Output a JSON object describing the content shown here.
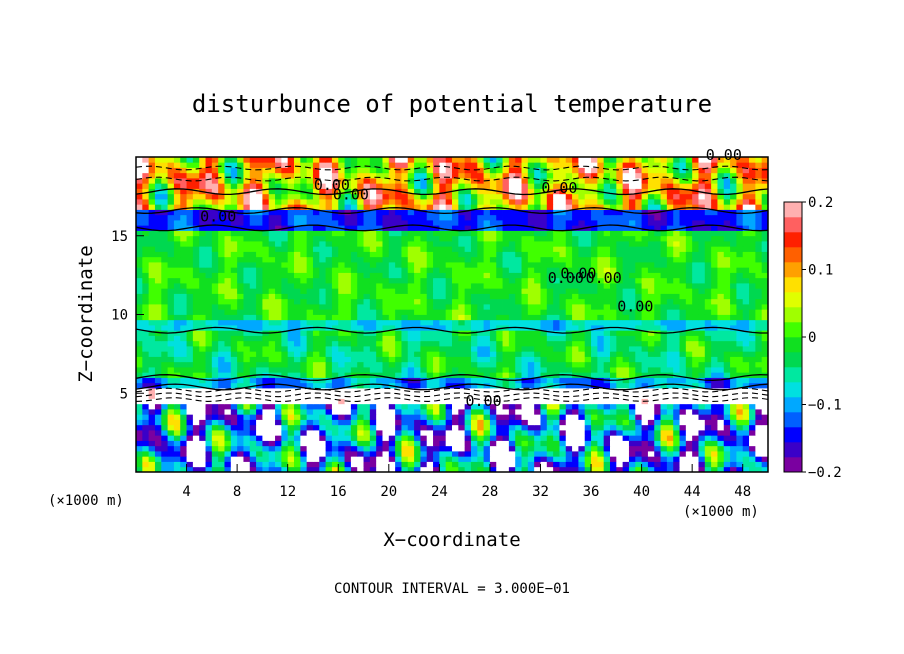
{
  "chart_data": {
    "type": "heatmap",
    "title": "disturbunce of potential temperature",
    "xlabel": "X−coordinate",
    "ylabel": "Z−coordinate",
    "x_unit_left": "(×1000 m)",
    "x_unit_right": "(×1000 m)",
    "footer": "CONTOUR INTERVAL = 3.000E−01",
    "xlim": [
      0,
      50
    ],
    "ylim": [
      0,
      20
    ],
    "xticks": [
      "4",
      "8",
      "12",
      "16",
      "20",
      "24",
      "28",
      "32",
      "36",
      "40",
      "44",
      "48"
    ],
    "yticks": [
      "5",
      "10",
      "15"
    ],
    "colorbar": {
      "range": [
        -0.2,
        0.2
      ],
      "tick_labels": [
        "0.2",
        "0.1",
        "0",
        "−0.1",
        "−0.2"
      ],
      "colors": [
        "#7a00a0",
        "#3a00c8",
        "#0000ff",
        "#0060ff",
        "#00a8ff",
        "#00e0e0",
        "#00e8a0",
        "#00d850",
        "#10e020",
        "#40ff00",
        "#a0ff00",
        "#e0ff00",
        "#ffe000",
        "#ffa000",
        "#ff6000",
        "#ff2000",
        "#ff6060",
        "#ffb0b0"
      ]
    },
    "contour_labels": [
      "0.00",
      "0.00",
      "0.00",
      "0.00",
      "0.00",
      "0.00",
      "0.00",
      "0.00",
      "0.00",
      "0.00"
    ],
    "bands": [
      {
        "z": [
          0,
          4.3
        ],
        "mean": -0.12,
        "variability": 0.6
      },
      {
        "z": [
          4.3,
          5.4
        ],
        "mean": 0.25,
        "variability": 0.15
      },
      {
        "z": [
          5.4,
          6.0
        ],
        "mean": -0.1,
        "variability": 0.2
      },
      {
        "z": [
          6.0,
          9.0
        ],
        "mean": -0.03,
        "variability": 0.2
      },
      {
        "z": [
          9.0,
          9.7
        ],
        "mean": -0.08,
        "variability": 0.1
      },
      {
        "z": [
          9.7,
          15.5
        ],
        "mean": -0.01,
        "variability": 0.15
      },
      {
        "z": [
          15.5,
          16.6
        ],
        "mean": -0.14,
        "variability": 0.12
      },
      {
        "z": [
          16.6,
          20
        ],
        "mean": 0.08,
        "variability": 0.5
      }
    ]
  }
}
